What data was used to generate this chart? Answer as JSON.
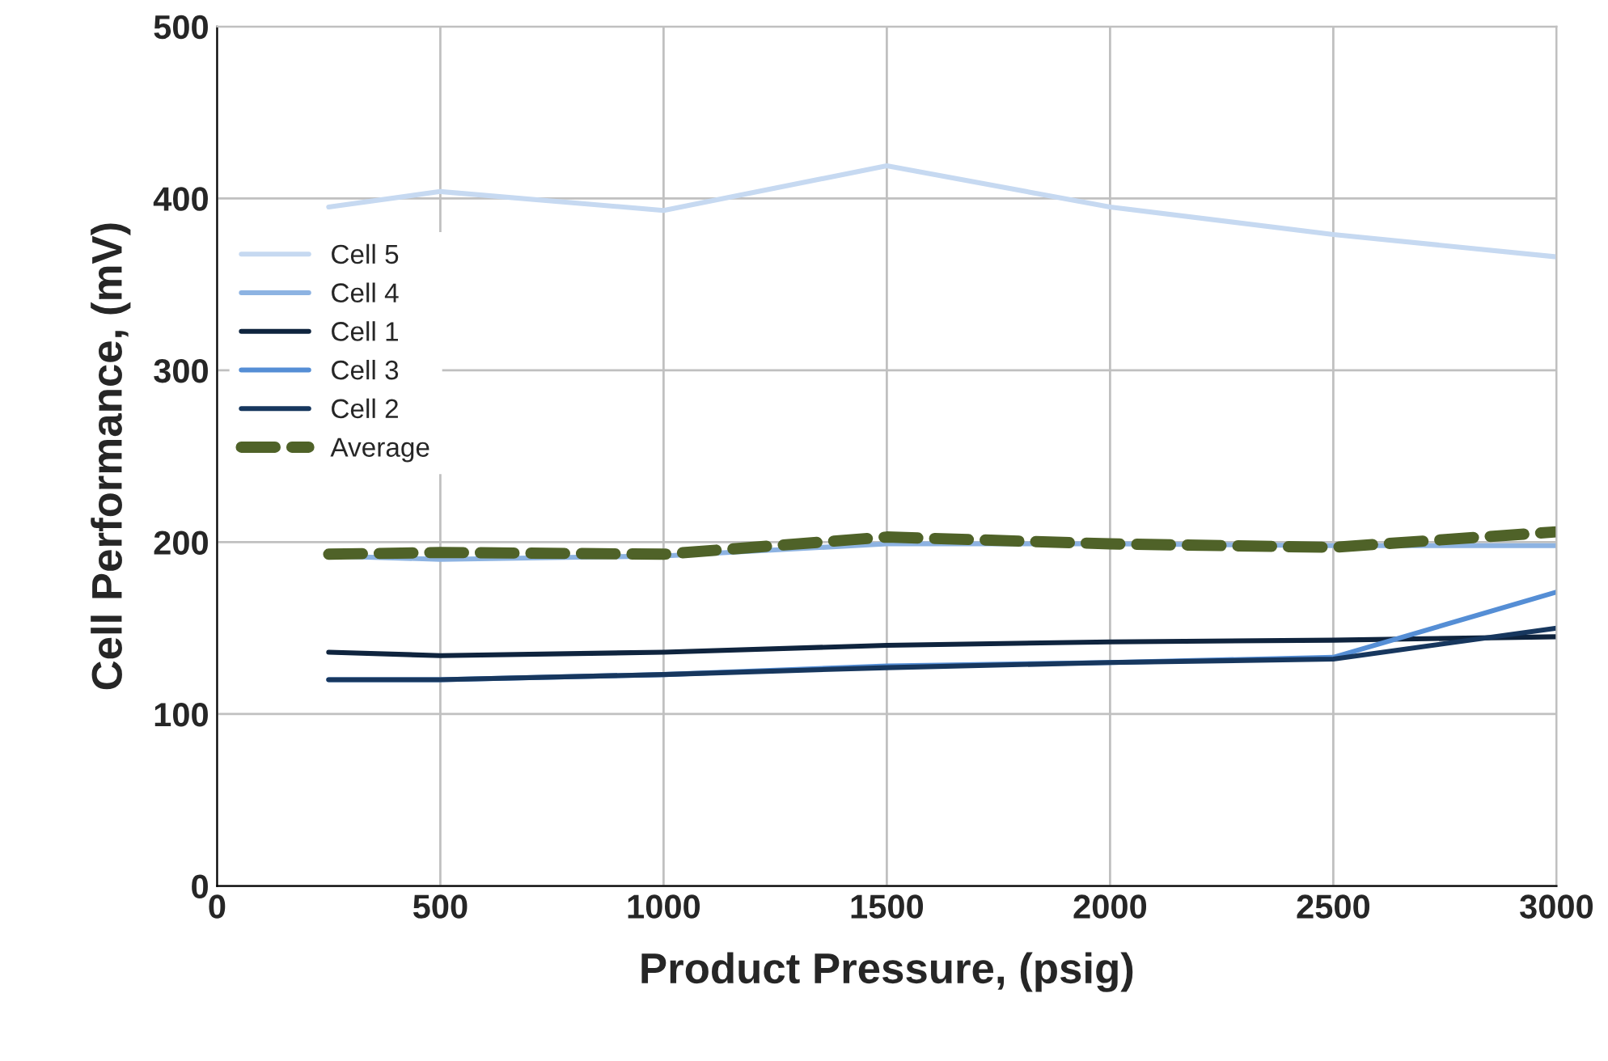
{
  "chart_data": {
    "type": "line",
    "xlabel": "Product Pressure, (psig)",
    "ylabel": "Cell Performance, (mV)",
    "x": [
      250,
      500,
      1000,
      1500,
      2000,
      2500,
      3000
    ],
    "xlim": [
      0,
      3000
    ],
    "xticks": [
      0,
      500,
      1000,
      1500,
      2000,
      2500,
      3000
    ],
    "ylim": [
      0,
      500
    ],
    "yticks": [
      0,
      100,
      200,
      300,
      400,
      500
    ],
    "grid": true,
    "legend": "left",
    "marker": "none",
    "series": [
      {
        "name": "Cell 5",
        "color": "#c6d9f1",
        "values": [
          395,
          404,
          393,
          419,
          395,
          379,
          366
        ]
      },
      {
        "name": "Cell 4",
        "color": "#8db3e2",
        "values": [
          192,
          190,
          192,
          199,
          199,
          198,
          198
        ]
      },
      {
        "name": "Cell 1",
        "color": "#0f243e",
        "values": [
          136,
          134,
          136,
          140,
          142,
          143,
          145
        ]
      },
      {
        "name": "Cell 3",
        "color": "#558ed5",
        "values": [
          120,
          120,
          123,
          128,
          130,
          133,
          171
        ]
      },
      {
        "name": "Cell 2",
        "color": "#17375e",
        "values": [
          120,
          120,
          123,
          127,
          130,
          132,
          150
        ]
      },
      {
        "name": "Average",
        "color": "#4f6228",
        "values": [
          193,
          194,
          193,
          203,
          199,
          197,
          206
        ],
        "line_style": "dashed"
      }
    ]
  }
}
